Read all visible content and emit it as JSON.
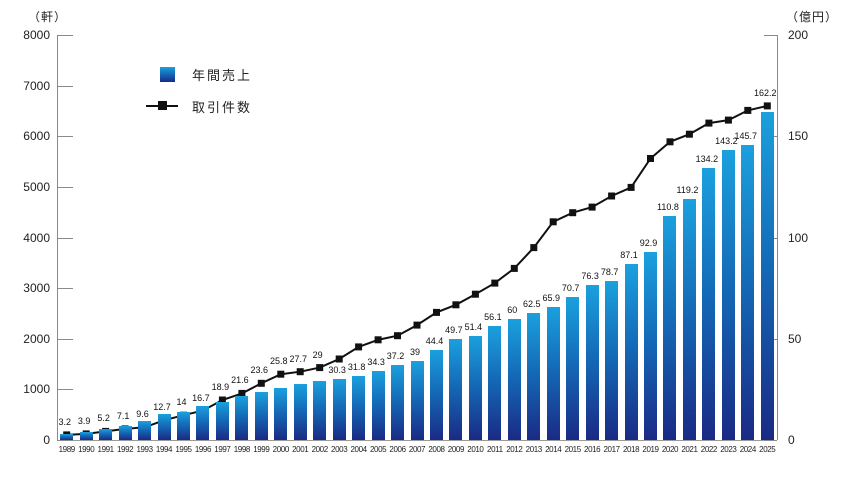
{
  "axes_units": {
    "left": "（軒）",
    "right": "（億円）"
  },
  "legend": {
    "sales_label": "年間売上",
    "transactions_label": "取引件数"
  },
  "colors": {
    "bar_gradient_top": "#1ba0de",
    "bar_gradient_mid": "#1468b6",
    "bar_gradient_bottom": "#1a2a84",
    "line": "#111111",
    "axis": "#8a8a8a",
    "text": "#222222"
  },
  "chart_data": {
    "type": "bar",
    "title": "",
    "categories": [
      "1989",
      "1990",
      "1991",
      "1992",
      "1993",
      "1994",
      "1995",
      "1996",
      "1997",
      "1998",
      "1999",
      "2000",
      "2001",
      "2002",
      "2003",
      "2004",
      "2005",
      "2006",
      "2007",
      "2008",
      "2009",
      "2010",
      "2011",
      "2012",
      "2013",
      "2014",
      "2015",
      "2016",
      "2017",
      "2018",
      "2019",
      "2020",
      "2021",
      "2022",
      "2023",
      "2024",
      "2025"
    ],
    "series": [
      {
        "name": "年間売上",
        "type": "bar",
        "axis": "right",
        "unit": "億円",
        "values": [
          3.2,
          3.9,
          5.2,
          7.1,
          9.6,
          12.7,
          14,
          16.7,
          18.9,
          21.6,
          23.6,
          25.8,
          27.7,
          29,
          30.3,
          31.8,
          34.3,
          37.2,
          39,
          44.4,
          49.7,
          51.4,
          56.1,
          60,
          62.5,
          65.9,
          70.7,
          76.3,
          78.7,
          87.1,
          92.9,
          110.8,
          119.2,
          134.2,
          143.2,
          145.7,
          162.2
        ],
        "labels": [
          "3.2",
          "3.9",
          "5.2",
          "7.1",
          "9.6",
          "12.7",
          "14",
          "16.7",
          "18.9",
          "21.6",
          "23.6",
          "25.8",
          "27.7",
          "29",
          "30.3",
          "31.8",
          "34.3",
          "37.2",
          "39",
          "44.4",
          "49.7",
          "51.4",
          "56.1",
          "60",
          "62.5",
          "65.9",
          "70.7",
          "76.3",
          "78.7",
          "87.1",
          "92.9",
          "110.8",
          "119.2",
          "134.2",
          "143.2",
          "145.7",
          "162.2"
        ]
      },
      {
        "name": "取引件数",
        "type": "line",
        "axis": "left",
        "unit": "軒",
        "values_estimated_from_pixels": true,
        "values": [
          100,
          120,
          170,
          220,
          250,
          390,
          490,
          580,
          790,
          920,
          1120,
          1300,
          1350,
          1430,
          1600,
          1840,
          1980,
          2060,
          2270,
          2520,
          2670,
          2880,
          3100,
          3390,
          3800,
          4310,
          4490,
          4600,
          4820,
          4990,
          5560,
          5890,
          6040,
          6260,
          6320,
          6510,
          6600
        ]
      }
    ],
    "left_axis": {
      "title": "（軒）",
      "min": 0,
      "max": 8000,
      "ticks": [
        0,
        1000,
        2000,
        3000,
        4000,
        5000,
        6000,
        7000,
        8000
      ]
    },
    "right_axis": {
      "title": "（億円）",
      "min": 0,
      "max": 200,
      "ticks": [
        0,
        50,
        100,
        150,
        200
      ]
    },
    "grid": false,
    "legend_position": "top-left-inside"
  }
}
